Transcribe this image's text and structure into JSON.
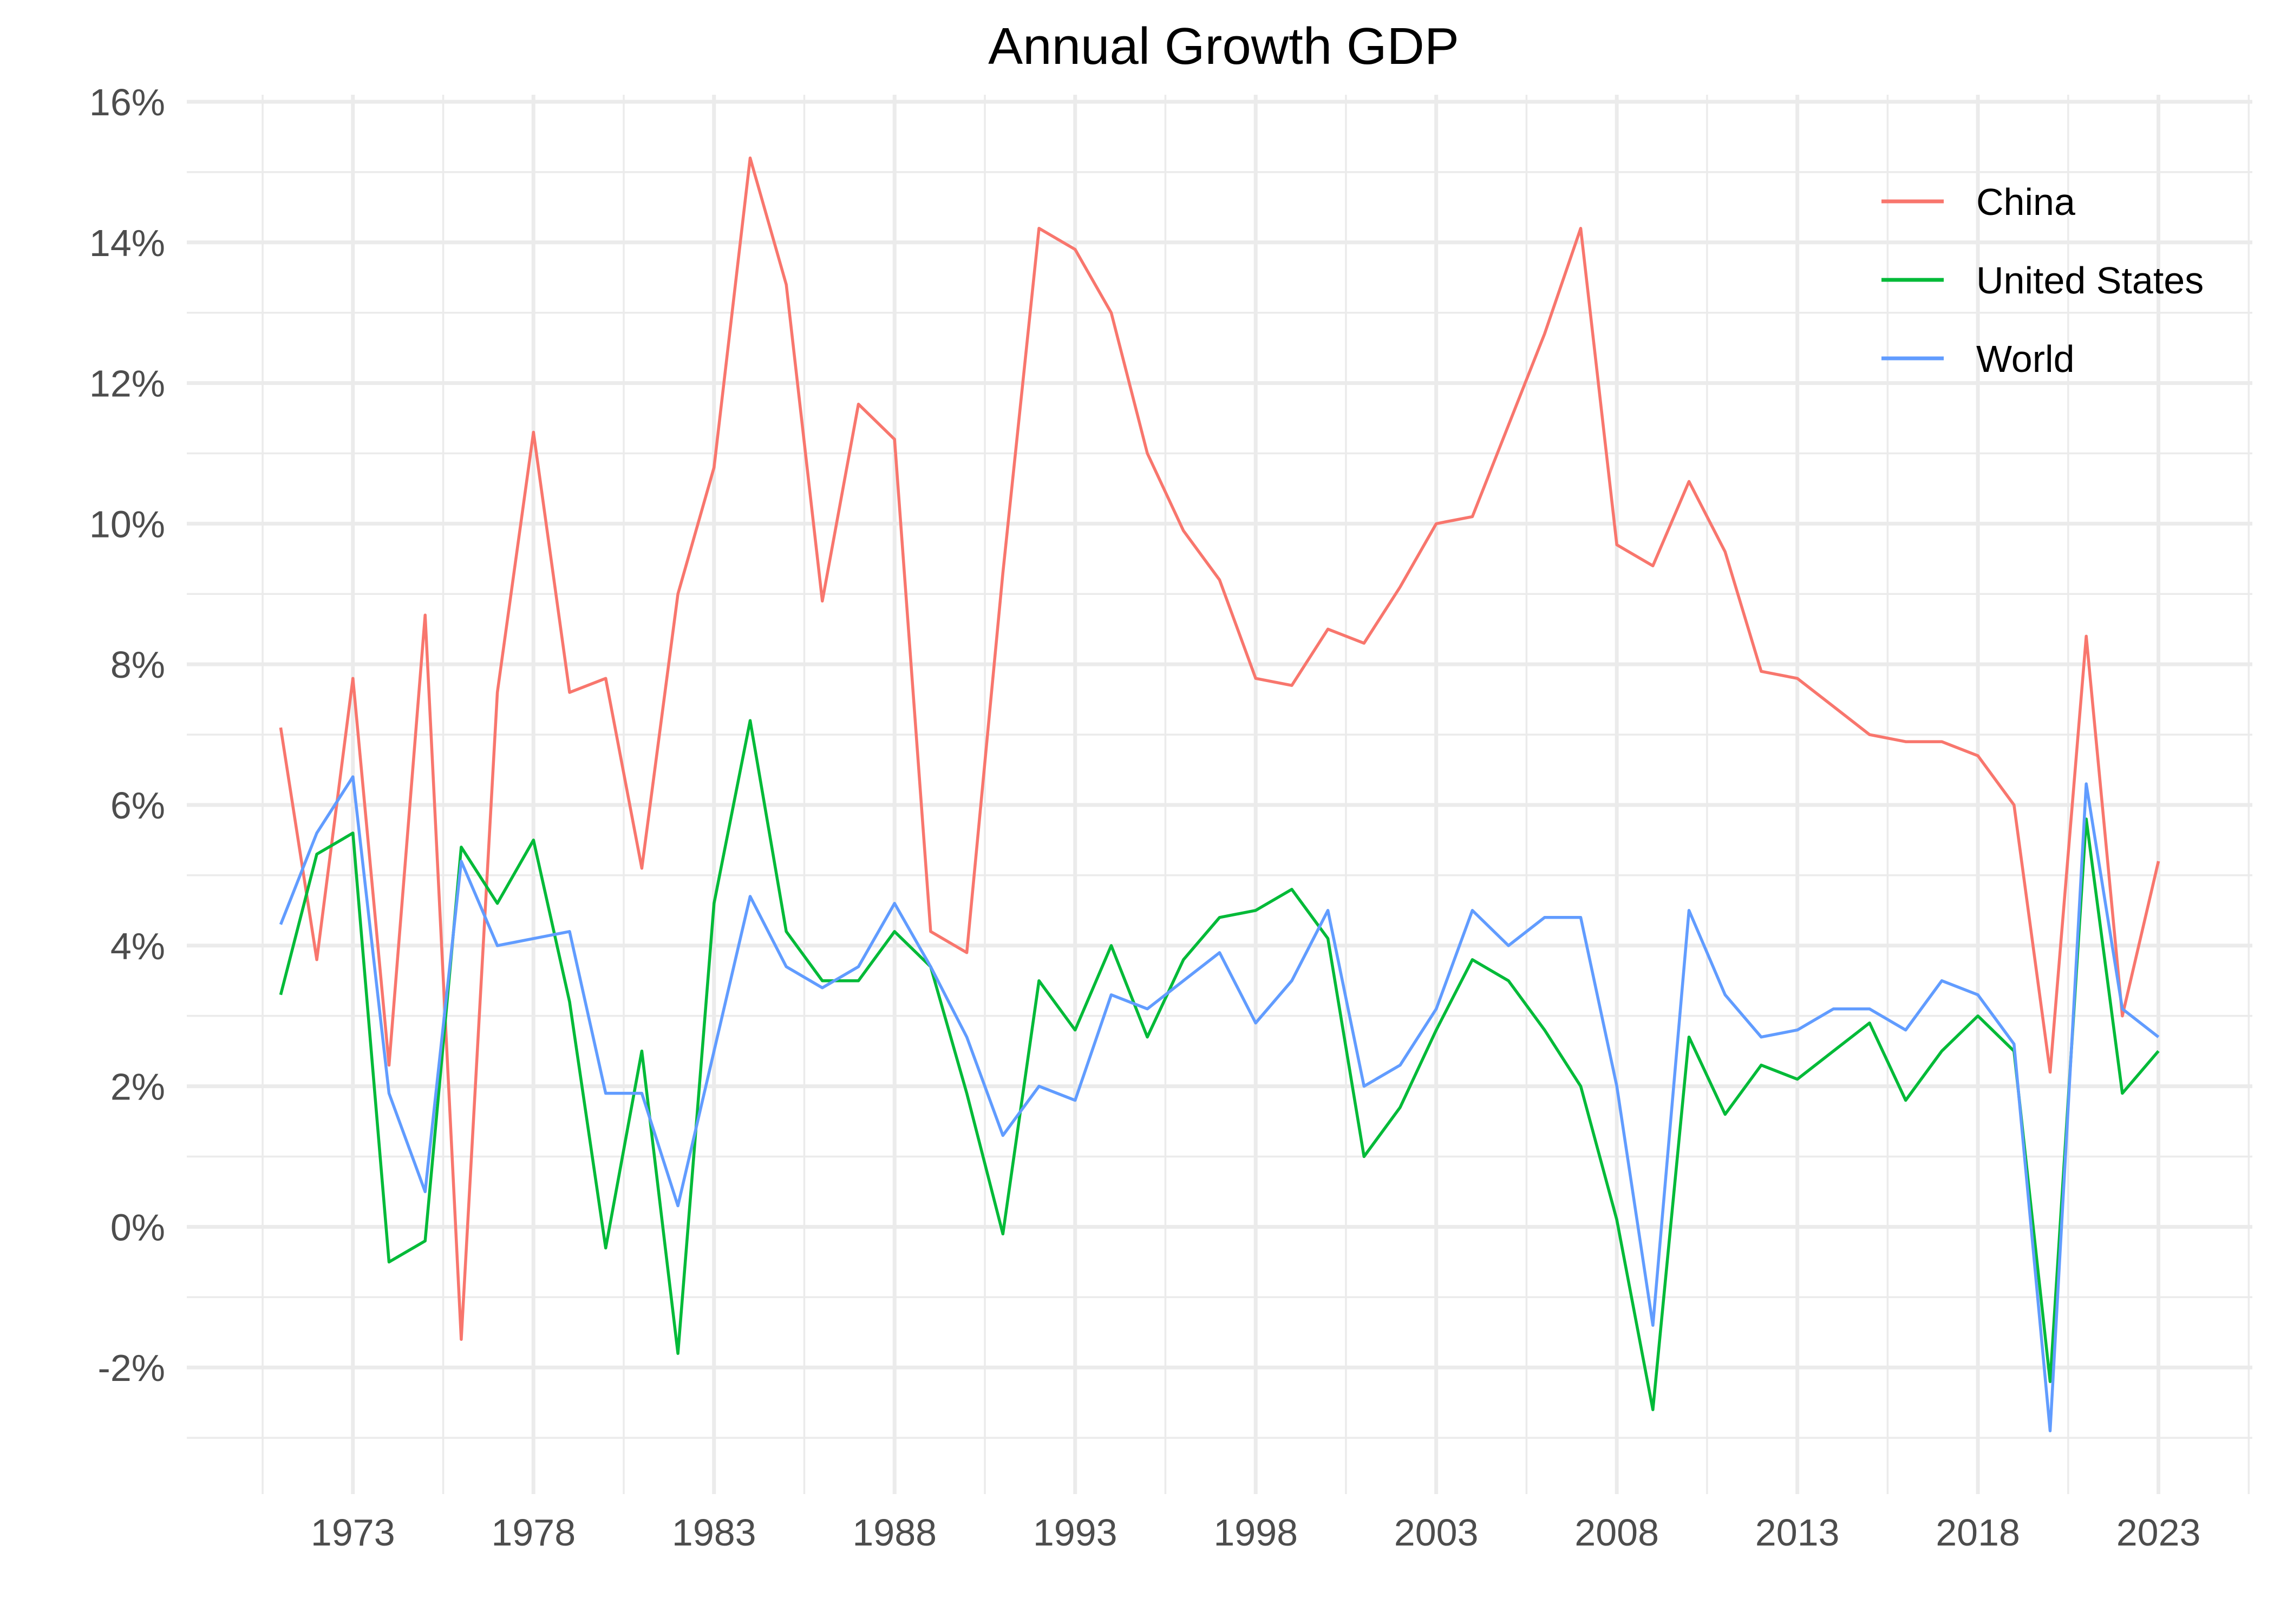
{
  "chart_data": {
    "type": "line",
    "title": "Annual Growth GDP",
    "xlabel": "",
    "ylabel": "",
    "x": [
      1971,
      1972,
      1973,
      1974,
      1975,
      1976,
      1977,
      1978,
      1979,
      1980,
      1981,
      1982,
      1983,
      1984,
      1985,
      1986,
      1987,
      1988,
      1989,
      1990,
      1991,
      1992,
      1993,
      1994,
      1995,
      1996,
      1997,
      1998,
      1999,
      2000,
      2001,
      2002,
      2003,
      2004,
      2005,
      2006,
      2007,
      2008,
      2009,
      2010,
      2011,
      2012,
      2013,
      2014,
      2015,
      2016,
      2017,
      2018,
      2019,
      2020,
      2021,
      2022,
      2023
    ],
    "xlim": [
      1971,
      2023
    ],
    "xticks": [
      1973,
      1978,
      1983,
      1988,
      1993,
      1998,
      2003,
      2008,
      2013,
      2018,
      2023
    ],
    "xtick_labels": [
      "1973",
      "1978",
      "1983",
      "1988",
      "1993",
      "1998",
      "2003",
      "2008",
      "2013",
      "2018",
      "2023"
    ],
    "ylim": [
      -3,
      16
    ],
    "yticks": [
      -2,
      0,
      2,
      4,
      6,
      8,
      10,
      12,
      14,
      16
    ],
    "ytick_labels": [
      "-2%",
      "0%",
      "2%",
      "4%",
      "6%",
      "8%",
      "10%",
      "12%",
      "14%",
      "16%"
    ],
    "grid": true,
    "legend_position": "top-right",
    "series": [
      {
        "name": "China",
        "color": "#F8766D",
        "values": [
          7.1,
          3.8,
          7.8,
          2.3,
          8.7,
          -1.6,
          7.6,
          11.3,
          7.6,
          7.8,
          5.1,
          9.0,
          10.8,
          15.2,
          13.4,
          8.9,
          11.7,
          11.2,
          4.2,
          3.9,
          9.3,
          14.2,
          13.9,
          13.0,
          11.0,
          9.9,
          9.2,
          7.8,
          7.7,
          8.5,
          8.3,
          9.1,
          10.0,
          10.1,
          11.4,
          12.7,
          14.2,
          9.7,
          9.4,
          10.6,
          9.6,
          7.9,
          7.8,
          7.4,
          7.0,
          6.9,
          6.9,
          6.7,
          6.0,
          2.2,
          8.4,
          3.0,
          5.2
        ]
      },
      {
        "name": "United States",
        "color": "#00BA38",
        "values": [
          3.3,
          5.3,
          5.6,
          -0.5,
          -0.2,
          5.4,
          4.6,
          5.5,
          3.2,
          -0.3,
          2.5,
          -1.8,
          4.6,
          7.2,
          4.2,
          3.5,
          3.5,
          4.2,
          3.7,
          1.9,
          -0.1,
          3.5,
          2.8,
          4.0,
          2.7,
          3.8,
          4.4,
          4.5,
          4.8,
          4.1,
          1.0,
          1.7,
          2.8,
          3.8,
          3.5,
          2.8,
          2.0,
          0.1,
          -2.6,
          2.7,
          1.6,
          2.3,
          2.1,
          2.5,
          2.9,
          1.8,
          2.5,
          3.0,
          2.5,
          -2.2,
          5.8,
          1.9,
          2.5
        ]
      },
      {
        "name": "World",
        "color": "#619CFF",
        "values": [
          4.3,
          5.6,
          6.4,
          1.9,
          0.5,
          5.2,
          4.0,
          4.1,
          4.2,
          1.9,
          1.9,
          0.3,
          2.5,
          4.7,
          3.7,
          3.4,
          3.7,
          4.6,
          3.7,
          2.7,
          1.3,
          2.0,
          1.8,
          3.3,
          3.1,
          3.5,
          3.9,
          2.9,
          3.5,
          4.5,
          2.0,
          2.3,
          3.1,
          4.5,
          4.0,
          4.4,
          4.4,
          2.0,
          -1.4,
          4.5,
          3.3,
          2.7,
          2.8,
          3.1,
          3.1,
          2.8,
          3.5,
          3.3,
          2.6,
          -2.9,
          6.3,
          3.1,
          2.7
        ]
      }
    ]
  }
}
